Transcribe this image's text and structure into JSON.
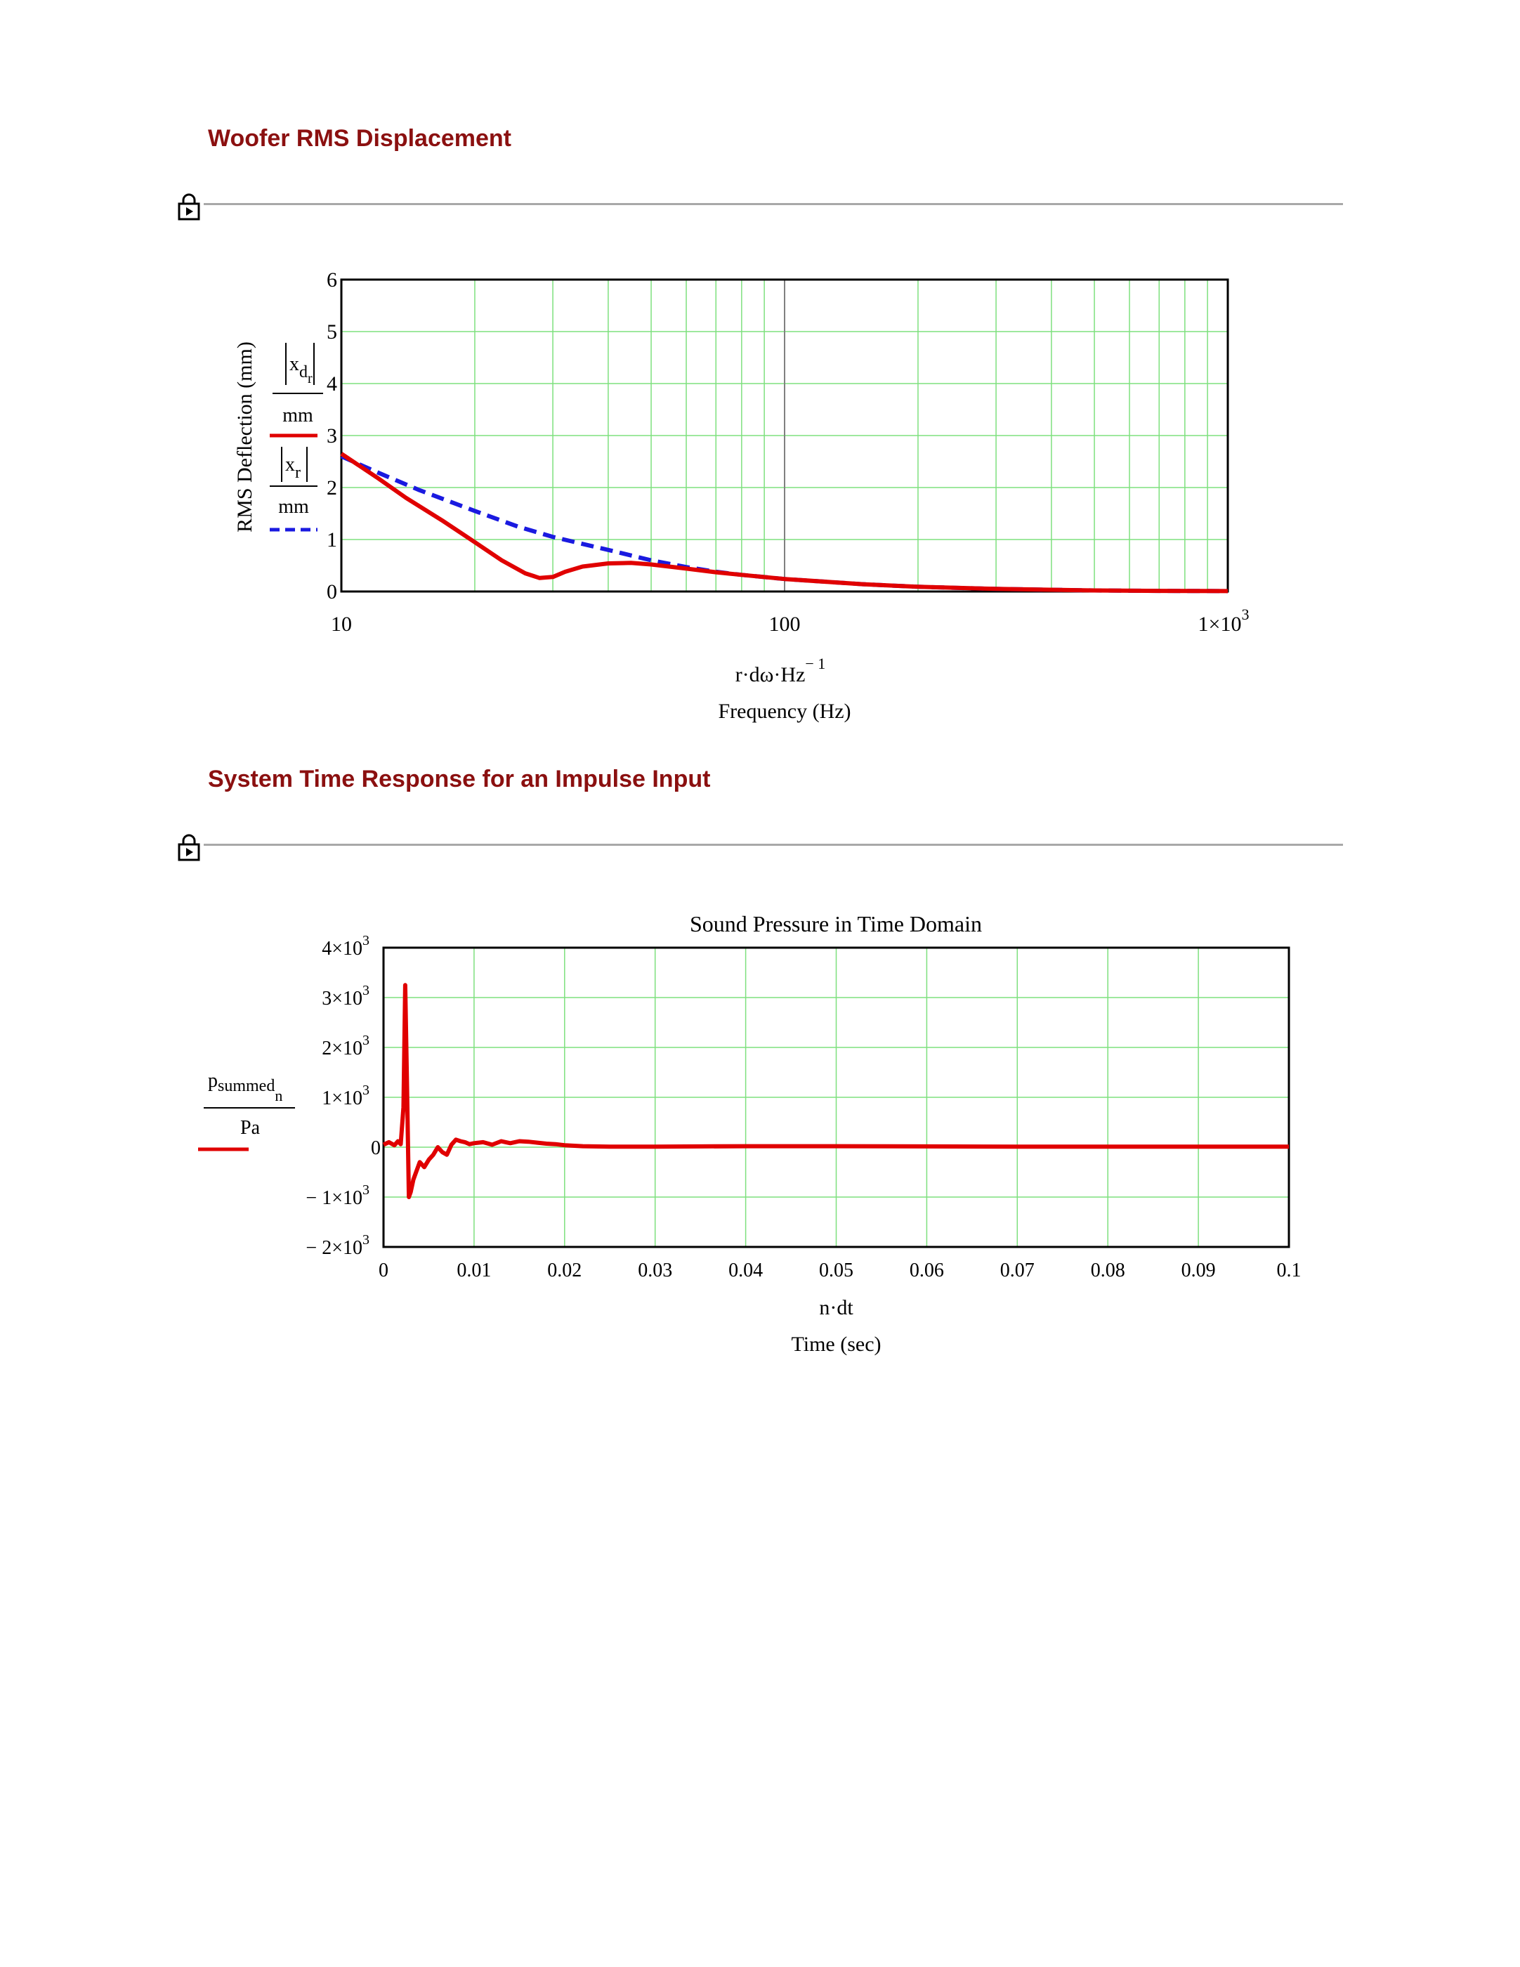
{
  "page": {
    "section1_title": "Woofer RMS Displacement",
    "section2_title": "System Time Response for an Impulse Input",
    "region_icon": "lock-icon"
  },
  "chart_data": [
    {
      "type": "line",
      "x_scale": "log",
      "xlim": [
        10,
        1000
      ],
      "ylim": [
        0,
        6
      ],
      "x_ticks": [
        "10",
        "100",
        "1×10"
      ],
      "x_tick_exponent": "3",
      "y_ticks": [
        "0",
        "1",
        "2",
        "3",
        "4",
        "5",
        "6"
      ],
      "xlabel_expr": "r·dω·Hz",
      "xlabel_exponent": "− 1",
      "xlabel": "Frequency (Hz)",
      "ylabel": "RMS Deflection (mm)",
      "grid": true,
      "marker_x": 100,
      "series": [
        {
          "legend_num": "x",
          "legend_sub": "d",
          "legend_subsub": "r",
          "legend_den": "mm",
          "color": "#e00000",
          "dash": "solid",
          "x": [
            10,
            12,
            14,
            17,
            20,
            23,
            26,
            28,
            30,
            32,
            35,
            40,
            45,
            50,
            60,
            70,
            80,
            100,
            150,
            200,
            300,
            500,
            700,
            1000
          ],
          "y": [
            2.65,
            2.2,
            1.8,
            1.35,
            0.95,
            0.6,
            0.35,
            0.26,
            0.28,
            0.38,
            0.48,
            0.54,
            0.55,
            0.52,
            0.44,
            0.37,
            0.32,
            0.24,
            0.14,
            0.09,
            0.05,
            0.02,
            0.012,
            0.008
          ]
        },
        {
          "legend_num": "x",
          "legend_sub": "r",
          "legend_den": "mm",
          "color": "#1a1ae0",
          "dash": "dashed",
          "x": [
            10,
            12,
            15,
            20,
            25,
            30,
            40,
            50,
            60,
            70,
            80,
            100,
            150,
            200,
            300,
            500,
            700,
            1000
          ],
          "y": [
            2.6,
            2.3,
            1.95,
            1.55,
            1.25,
            1.05,
            0.8,
            0.6,
            0.47,
            0.38,
            0.32,
            0.24,
            0.14,
            0.09,
            0.05,
            0.02,
            0.012,
            0.008
          ]
        }
      ]
    },
    {
      "type": "line",
      "title": "Sound Pressure in Time Domain",
      "xlim": [
        0,
        0.1
      ],
      "ylim": [
        -2000,
        4000
      ],
      "x_ticks": [
        "0",
        "0.01",
        "0.02",
        "0.03",
        "0.04",
        "0.05",
        "0.06",
        "0.07",
        "0.08",
        "0.09",
        "0.1"
      ],
      "y_ticks": [
        {
          "m": "− 2×10",
          "e": "3"
        },
        {
          "m": "− 1×10",
          "e": "3"
        },
        {
          "m": "0",
          "e": ""
        },
        {
          "m": "1×10",
          "e": "3"
        },
        {
          "m": "2×10",
          "e": "3"
        },
        {
          "m": "3×10",
          "e": "3"
        },
        {
          "m": "4×10",
          "e": "3"
        }
      ],
      "xlabel_expr": "n·dt",
      "xlabel": "Time (sec)",
      "grid": true,
      "series": [
        {
          "legend_num": "p",
          "legend_sub": "summed",
          "legend_subsub": "n",
          "legend_den": "Pa",
          "color": "#e00000",
          "dash": "solid",
          "x": [
            0,
            0.0006,
            0.0012,
            0.0016,
            0.0019,
            0.0022,
            0.0024,
            0.0026,
            0.0028,
            0.003,
            0.0033,
            0.0036,
            0.004,
            0.0045,
            0.005,
            0.0055,
            0.006,
            0.0065,
            0.007,
            0.0075,
            0.008,
            0.0085,
            0.009,
            0.0095,
            0.01,
            0.011,
            0.012,
            0.013,
            0.0135,
            0.014,
            0.015,
            0.016,
            0.017,
            0.018,
            0.019,
            0.02,
            0.022,
            0.025,
            0.03,
            0.035,
            0.04,
            0.05,
            0.06,
            0.07,
            0.08,
            0.09,
            0.1
          ],
          "y": [
            50,
            100,
            40,
            120,
            60,
            800,
            3250,
            1200,
            -1000,
            -900,
            -650,
            -500,
            -300,
            -400,
            -250,
            -150,
            0,
            -100,
            -150,
            50,
            150,
            120,
            100,
            60,
            80,
            100,
            50,
            120,
            100,
            80,
            120,
            110,
            90,
            70,
            60,
            40,
            20,
            10,
            10,
            15,
            20,
            20,
            15,
            10,
            10,
            10,
            10
          ]
        }
      ]
    }
  ]
}
